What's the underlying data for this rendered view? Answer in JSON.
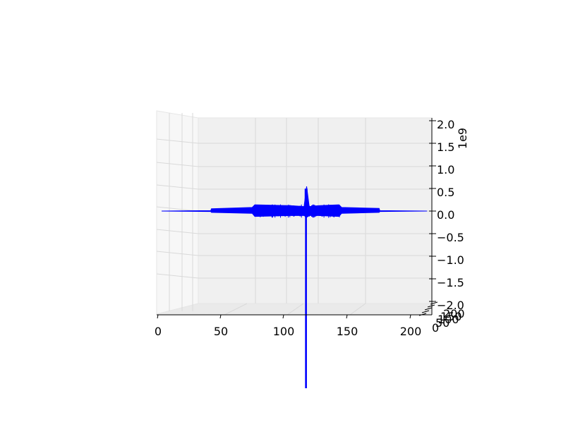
{
  "chart_data": {
    "type": "surface",
    "title": "",
    "xlabel": "",
    "ylabel": "",
    "zlabel": "",
    "z_offset_label": "1e9",
    "xlim": [
      0,
      210
    ],
    "ylim": [
      0,
      210
    ],
    "zlim": [
      -2.0,
      2.0
    ],
    "x_ticks": [
      "0",
      "50",
      "100",
      "150",
      "200"
    ],
    "y_ticks": [
      "0",
      "50",
      "100",
      "150",
      "200"
    ],
    "z_ticks": [
      "−2.0",
      "−1.5",
      "−1.0",
      "−0.5",
      "0.0",
      "0.5",
      "1.0",
      "1.5",
      "2.0"
    ],
    "z_tick_values": [
      -2.0,
      -1.5,
      -1.0,
      -0.5,
      0.0,
      0.5,
      1.0,
      1.5,
      2.0
    ],
    "grid": true,
    "series_color": "#0000ff",
    "profile": {
      "x": [
        0,
        38,
        38.5,
        70,
        72,
        100,
        110,
        112,
        114,
        121,
        137,
        139,
        168,
        168.5,
        205
      ],
      "upper": [
        0.0,
        0.01,
        0.05,
        0.08,
        0.14,
        0.12,
        0.1,
        0.55,
        0.1,
        0.12,
        0.14,
        0.08,
        0.06,
        0.01,
        0.0
      ],
      "lower": [
        0.0,
        -0.01,
        -0.03,
        -0.05,
        -0.12,
        -0.1,
        -0.1,
        -3.9,
        -0.1,
        -0.1,
        -0.12,
        -0.05,
        -0.03,
        -0.01,
        0.0
      ]
    },
    "noise_band": {
      "x_start": 72,
      "x_end": 138,
      "amplitude": 0.1
    }
  }
}
